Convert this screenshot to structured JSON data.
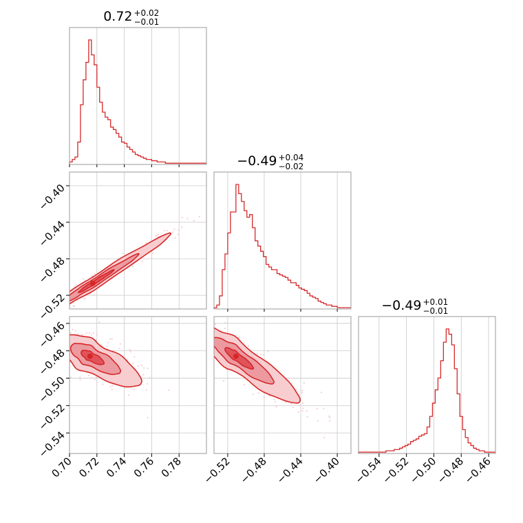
{
  "chart_data": {
    "type": "corner",
    "color": "#d62728",
    "fill_colors": [
      "#f7cdd0",
      "#ec9aa0",
      "#e0535b"
    ],
    "scatter_color": "#f4c4c8",
    "grid": true,
    "parameters": [
      {
        "title_median": "0.72",
        "title_plus": "+0.02",
        "title_minus": "−0.01",
        "range": [
          0.7,
          0.8
        ],
        "ticks": [
          {
            "value": 0.7,
            "label": "0.70"
          },
          {
            "value": 0.72,
            "label": "0.72"
          },
          {
            "value": 0.74,
            "label": "0.74"
          },
          {
            "value": 0.76,
            "label": "0.76"
          },
          {
            "value": 0.78,
            "label": "0.78"
          }
        ]
      },
      {
        "title_median": "−0.49",
        "title_plus": "+0.04",
        "title_minus": "−0.02",
        "range": [
          -0.535,
          -0.385
        ],
        "ticks": [
          {
            "value": -0.52,
            "label": "−0.52"
          },
          {
            "value": -0.48,
            "label": "−0.48"
          },
          {
            "value": -0.44,
            "label": "−0.44"
          },
          {
            "value": -0.4,
            "label": "−0.40"
          }
        ]
      },
      {
        "title_median": "−0.49",
        "title_plus": "+0.01",
        "title_minus": "−0.01",
        "range": [
          -0.555,
          -0.455
        ],
        "ticks": [
          {
            "value": -0.54,
            "label": "−0.54"
          },
          {
            "value": -0.52,
            "label": "−0.52"
          },
          {
            "value": -0.5,
            "label": "−0.50"
          },
          {
            "value": -0.48,
            "label": "−0.48"
          },
          {
            "value": -0.46,
            "label": "−0.46"
          }
        ]
      }
    ],
    "histograms": [
      {
        "param": 0,
        "bin_start": 0.7,
        "bin_width": 0.002,
        "counts": [
          2,
          4,
          6,
          18,
          48,
          68,
          82,
          100,
          88,
          80,
          62,
          50,
          42,
          38,
          36,
          30,
          28,
          25,
          22,
          18,
          17,
          14,
          12,
          10,
          8,
          7,
          6,
          5,
          4,
          4,
          3,
          3,
          2,
          2,
          2,
          1,
          1,
          1,
          1,
          1,
          1,
          1,
          1,
          1,
          1,
          1,
          1,
          1,
          1,
          1
        ]
      },
      {
        "param": 1,
        "bin_start": -0.535,
        "bin_width": 0.003,
        "counts": [
          1,
          3,
          10,
          30,
          42,
          58,
          74,
          74,
          95,
          88,
          82,
          75,
          70,
          72,
          62,
          52,
          48,
          44,
          40,
          34,
          32,
          30,
          30,
          27,
          26,
          25,
          24,
          22,
          20,
          20,
          18,
          16,
          15,
          14,
          12,
          10,
          9,
          8,
          6,
          5,
          4,
          3,
          3,
          2,
          2,
          1,
          1,
          1,
          1,
          1
        ]
      },
      {
        "param": 2,
        "bin_start": -0.555,
        "bin_width": 0.002,
        "counts": [
          1,
          1,
          1,
          1,
          1,
          1,
          1,
          1,
          1,
          1,
          2,
          2,
          2,
          3,
          3,
          4,
          5,
          6,
          7,
          9,
          10,
          11,
          13,
          14,
          15,
          20,
          28,
          38,
          48,
          57,
          70,
          84,
          94,
          90,
          82,
          64,
          45,
          28,
          18,
          12,
          8,
          6,
          4,
          3,
          2,
          2,
          1,
          1,
          1,
          1
        ]
      }
    ],
    "pairs": [
      {
        "x_param": 0,
        "y_param": 1,
        "center": [
          0.717,
          -0.507
        ],
        "sigma_major": 0.024,
        "sigma_minor": 0.0017,
        "orientation_deg": 44,
        "skew": 0.5
      },
      {
        "x_param": 0,
        "y_param": 2,
        "center": [
          0.715,
          -0.484
        ],
        "sigma_major": 0.012,
        "sigma_minor": 0.0035,
        "orientation_deg": -28,
        "skew": 0.6
      },
      {
        "x_param": 1,
        "y_param": 2,
        "center": [
          -0.511,
          -0.484
        ],
        "sigma_major": 0.022,
        "sigma_minor": 0.0035,
        "orientation_deg": -25,
        "skew": 0.6
      }
    ]
  }
}
